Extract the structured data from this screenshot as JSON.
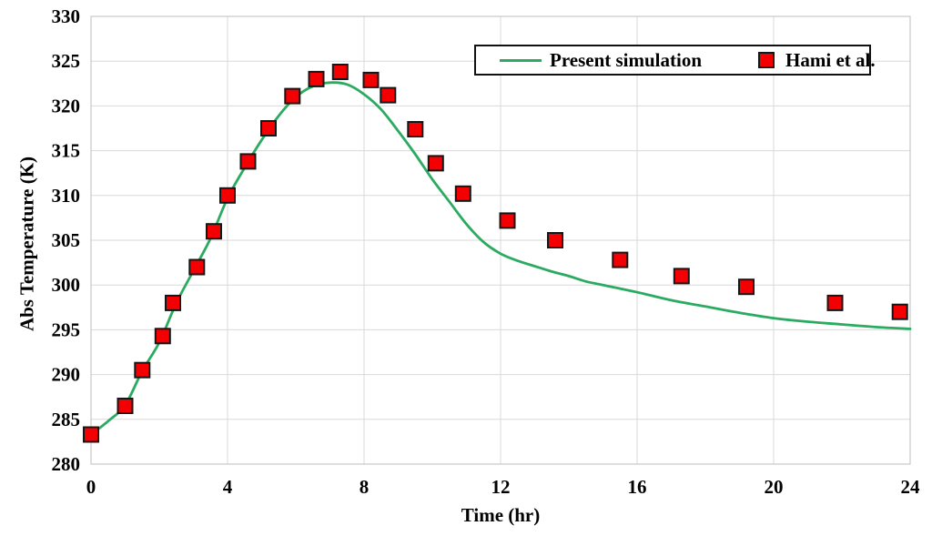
{
  "page": {
    "background": "#FFFFFF"
  },
  "chart_data": {
    "type": "line",
    "title": "",
    "xlabel": "Time (hr)",
    "ylabel": "Abs Temperature (K)",
    "xlim": [
      0,
      24
    ],
    "ylim": [
      280,
      330
    ],
    "xticks": [
      0,
      4,
      8,
      12,
      16,
      20,
      24
    ],
    "yticks": [
      280,
      285,
      290,
      295,
      300,
      305,
      310,
      315,
      320,
      325,
      330
    ],
    "grid": true,
    "grid_color": "#D9D9D9",
    "plot_border_color": "#C8C8C8",
    "axis_text_color": "#000000",
    "legend_position": "top-inside",
    "legend_border_color": "#111111",
    "legend_background": "#FFFFFF",
    "series": [
      {
        "name": "Present simulation",
        "type": "line",
        "color": "#2BAB61",
        "line_width": 2.8,
        "x": [
          0,
          0.5,
          1,
          1.5,
          2,
          2.5,
          3,
          3.5,
          4,
          4.5,
          5,
          5.5,
          6,
          6.5,
          7,
          7.5,
          8,
          8.5,
          9,
          9.5,
          10,
          10.5,
          11,
          11.5,
          12,
          12.5,
          13,
          13.5,
          14,
          14.5,
          15,
          16,
          17,
          18,
          19,
          20,
          21,
          22,
          23,
          24
        ],
        "y": [
          283.3,
          284.8,
          286.6,
          290.4,
          293.6,
          298.0,
          301.6,
          305.2,
          309.7,
          313.1,
          316.2,
          318.9,
          321.0,
          322.2,
          322.6,
          322.4,
          321.3,
          319.6,
          317.2,
          314.6,
          311.8,
          309.3,
          306.8,
          304.8,
          303.5,
          302.7,
          302.1,
          301.5,
          301.0,
          300.4,
          300.0,
          299.2,
          298.3,
          297.6,
          296.9,
          296.3,
          295.9,
          295.6,
          295.3,
          295.1
        ]
      },
      {
        "name": "Hami et al.",
        "type": "scatter",
        "marker": "square",
        "color": "#F50002",
        "marker_border": "#161616",
        "marker_size": 16,
        "x": [
          0,
          1,
          1.5,
          2.1,
          2.4,
          3.1,
          3.6,
          4,
          4.6,
          5.2,
          5.9,
          6.6,
          7.3,
          8.2,
          8.7,
          9.5,
          10.1,
          10.9,
          12.2,
          13.6,
          15.5,
          17.3,
          19.2,
          21.8,
          23.7
        ],
        "y": [
          283.3,
          286.5,
          290.5,
          294.3,
          298.0,
          302.0,
          306.0,
          310.0,
          313.8,
          317.5,
          321.1,
          323.0,
          323.8,
          322.9,
          321.2,
          317.4,
          313.6,
          310.2,
          307.2,
          305.0,
          302.8,
          301.0,
          299.8,
          298.0,
          297.0
        ]
      }
    ]
  }
}
